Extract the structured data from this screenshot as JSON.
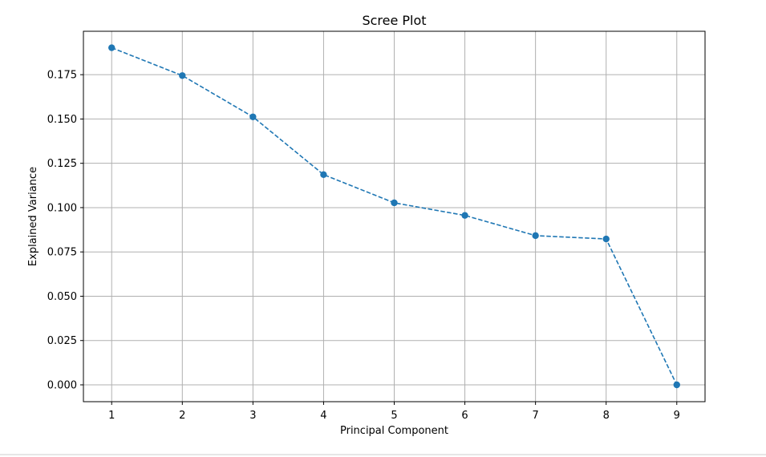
{
  "chart_data": {
    "type": "line",
    "title": "Scree Plot",
    "xlabel": "Principal Component",
    "ylabel": "Explained Variance",
    "x": [
      1,
      2,
      3,
      4,
      5,
      6,
      7,
      8,
      9
    ],
    "series": [
      {
        "values": [
          0.1902,
          0.1745,
          0.1512,
          0.1186,
          0.1027,
          0.0956,
          0.0842,
          0.0823,
          0.0
        ]
      }
    ],
    "xlim": [
      0.6,
      9.4
    ],
    "ylim": [
      -0.0095,
      0.1995
    ],
    "xticks": [
      1,
      2,
      3,
      4,
      5,
      6,
      7,
      8,
      9
    ],
    "yticks": [
      0,
      0.025,
      0.05,
      0.075,
      0.1,
      0.125,
      0.15,
      0.175
    ],
    "ytick_labels": [
      "0.000",
      "0.025",
      "0.050",
      "0.075",
      "0.100",
      "0.125",
      "0.150",
      "0.175"
    ],
    "grid": true,
    "line_style": "dashed",
    "marker": "circle",
    "color": "#1f77b4",
    "grid_color": "#b0b0b0"
  }
}
